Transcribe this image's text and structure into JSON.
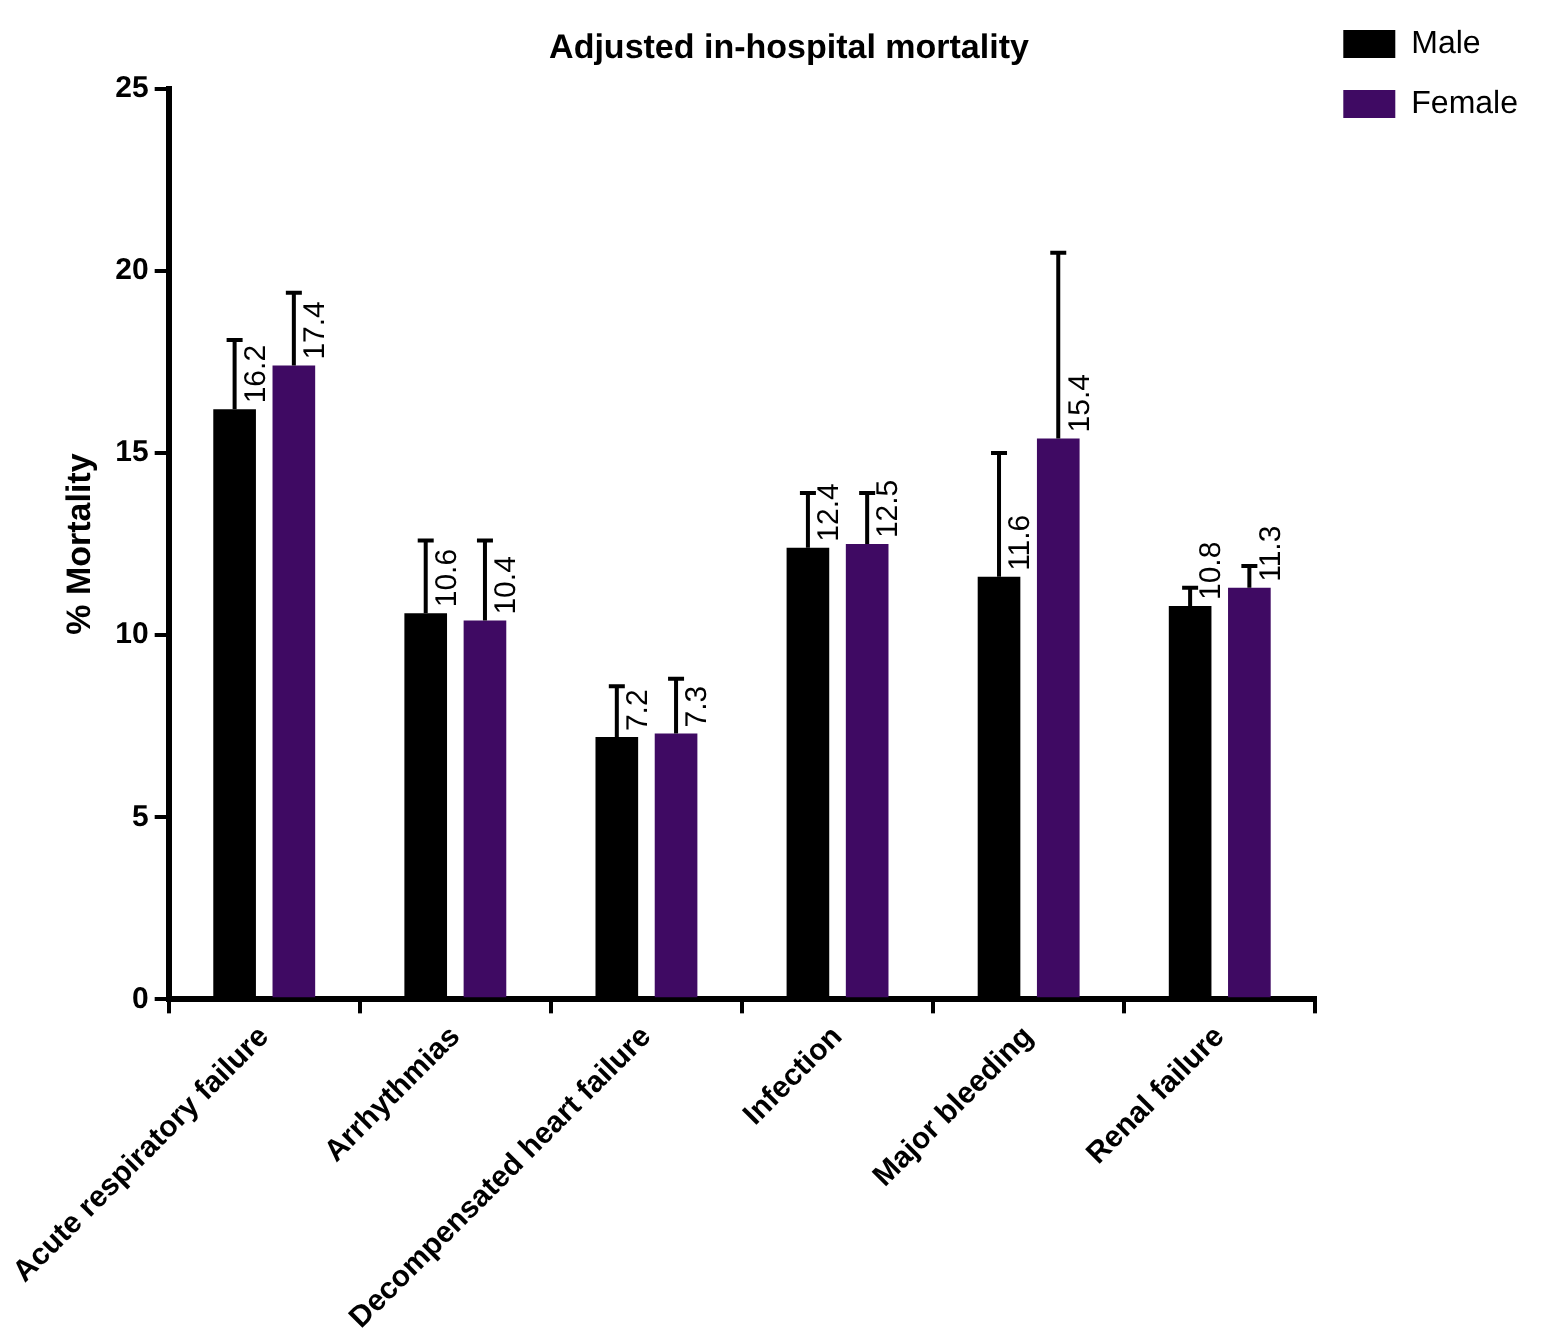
{
  "chart_data": {
    "type": "bar",
    "title": "Adjusted in-hospital mortality",
    "ylabel": "% Mortality",
    "categories": [
      "Acute respiratory failure",
      "Arrhythmias",
      "Decompensated heart failure",
      "Infection",
      "Major bleeding",
      "Renal failure"
    ],
    "series": [
      {
        "name": "Male",
        "color": "#000000",
        "values": [
          16.2,
          10.6,
          7.2,
          12.4,
          11.6,
          10.8
        ],
        "errors": [
          [
            16.2,
            18.1
          ],
          [
            10.6,
            12.6
          ],
          [
            7.2,
            8.6
          ],
          [
            12.4,
            13.9
          ],
          [
            11.6,
            15.0
          ],
          [
            10.8,
            11.3
          ]
        ]
      },
      {
        "name": "Female",
        "color": "#3f0a63",
        "values": [
          17.4,
          10.4,
          7.3,
          12.5,
          15.4,
          11.3
        ],
        "errors": [
          [
            17.4,
            19.4
          ],
          [
            10.4,
            12.6
          ],
          [
            7.3,
            8.8
          ],
          [
            12.5,
            13.9
          ],
          [
            15.4,
            20.5
          ],
          [
            11.3,
            11.9
          ]
        ]
      }
    ],
    "ylim": [
      0,
      25
    ],
    "yticks": [
      0,
      5,
      10,
      15,
      20,
      25
    ],
    "grid": false,
    "legend": "top right",
    "data_labels": true
  }
}
